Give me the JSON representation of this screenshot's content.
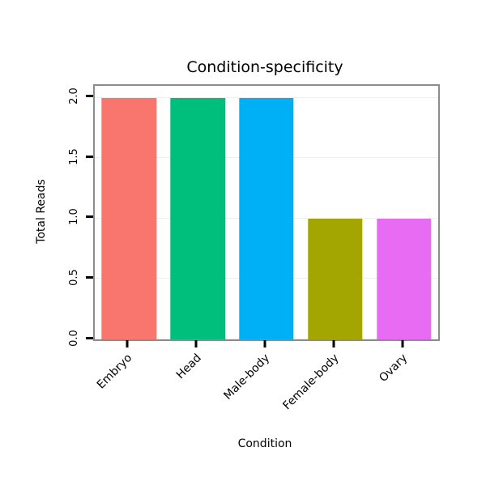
{
  "chart_data": {
    "type": "bar",
    "title": "Condition-specificity",
    "xlabel": "Condition",
    "ylabel": "Total Reads",
    "categories": [
      "Embryo",
      "Head",
      "Male-body",
      "Female-body",
      "Ovary"
    ],
    "values": [
      2,
      2,
      2,
      1,
      1
    ],
    "bar_colors": [
      "#F8766D",
      "#00BF7D",
      "#00B0F6",
      "#A3A500",
      "#E76BF3"
    ],
    "yticks": [
      0.0,
      0.5,
      1.0,
      1.5,
      2.0
    ],
    "ytick_labels": [
      "0.0",
      "0.5",
      "1.0",
      "1.5",
      "2.0"
    ],
    "ylim": [
      0,
      2.1
    ],
    "grid": true,
    "legend": "none",
    "panel_border_color": "#8c8c8c"
  }
}
